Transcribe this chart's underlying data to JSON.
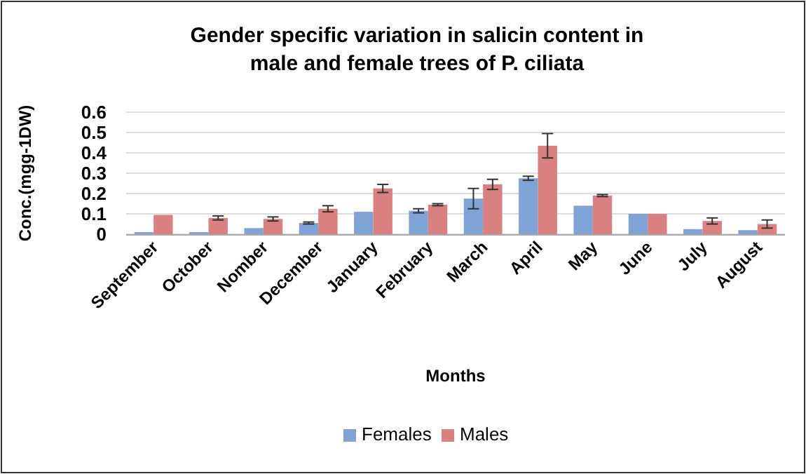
{
  "chart_data": {
    "type": "bar",
    "title": "Gender specific variation in salicin content in male and female trees of P. ciliata",
    "xlabel": "Months",
    "ylabel": "Conc.(mgg-1DW)",
    "categories": [
      "September",
      "October",
      "Nomber",
      "December",
      "January",
      "February",
      "March",
      "April",
      "May",
      "June",
      "July",
      "August"
    ],
    "series": [
      {
        "name": "Females",
        "color": "#7ea3d4",
        "values": [
          0.01,
          0.01,
          0.03,
          0.055,
          0.11,
          0.115,
          0.175,
          0.275,
          0.14,
          0.1,
          0.025,
          0.02
        ],
        "errors": [
          null,
          null,
          null,
          0.005,
          null,
          0.01,
          0.05,
          0.01,
          null,
          null,
          null,
          null
        ]
      },
      {
        "name": "Males",
        "color": "#d98080",
        "values": [
          0.095,
          0.08,
          0.075,
          0.125,
          0.225,
          0.145,
          0.245,
          0.435,
          0.19,
          0.1,
          0.065,
          0.05
        ],
        "errors": [
          null,
          0.01,
          0.01,
          0.015,
          0.02,
          0.005,
          0.025,
          0.06,
          0.005,
          null,
          0.015,
          0.02
        ]
      }
    ],
    "ylim": [
      0,
      0.6
    ],
    "yticks": [
      0,
      {
        "value": 0.1,
        "label": "0.1"
      },
      {
        "value": 0.2,
        "label": "0.2"
      },
      {
        "value": 0.3,
        "label": "0.3"
      },
      {
        "value": 0.4,
        "label": "0.4"
      },
      {
        "value": 0.5,
        "label": "0.5"
      },
      {
        "value": 0.6,
        "label": "0.6"
      }
    ],
    "grid": "y",
    "legend": "bottom"
  }
}
